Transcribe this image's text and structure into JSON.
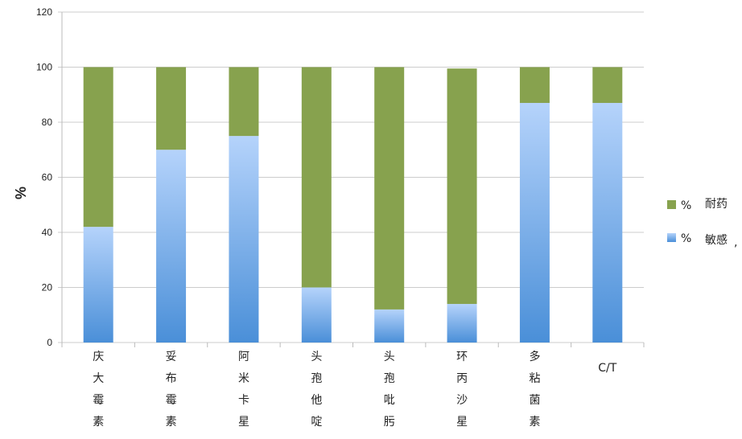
{
  "chart_data": {
    "type": "bar",
    "stacked": true,
    "categories": [
      "庆大霉素",
      "妥布霉素",
      "阿米卡星",
      "头孢他啶",
      "头孢吡肟",
      "环丙沙星",
      "多粘菌素",
      "C/T"
    ],
    "series": [
      {
        "name": "%敏感",
        "color": "#6fa3e4",
        "values": [
          42,
          70,
          75,
          20,
          12,
          14,
          87,
          87
        ]
      },
      {
        "name": "%耐药",
        "color": "#87a24e",
        "values": [
          58,
          30,
          25,
          80,
          88,
          85.5,
          13,
          13
        ]
      }
    ],
    "ylabel": "%",
    "ylim": [
      0,
      120
    ],
    "yticks": [
      0,
      20,
      40,
      60,
      80,
      100,
      120
    ],
    "grid": true,
    "legend_position": "right",
    "legend": [
      {
        "symbol": "%",
        "label": "耐药"
      },
      {
        "symbol": "%",
        "label": "敏感"
      }
    ],
    "legend_suffix": ","
  }
}
